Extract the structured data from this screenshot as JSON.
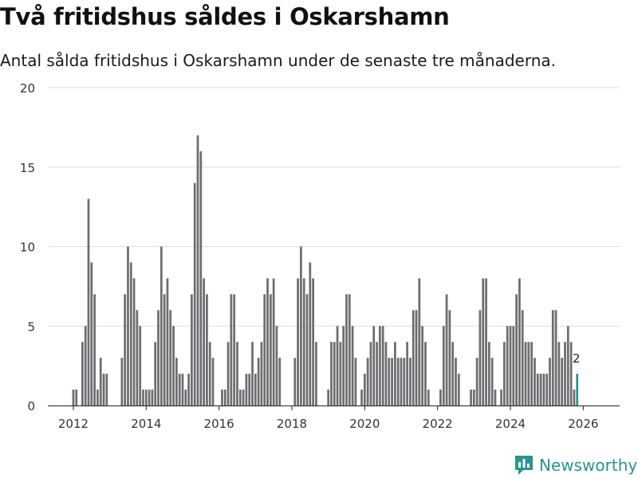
{
  "chart_data": {
    "type": "bar",
    "title": "Två fritidshus såldes i Oskarshamn",
    "subtitle": "Antal sålda fritidshus i Oskarshamn under de senaste tre månaderna.",
    "xlabel": "",
    "ylabel": "",
    "ylim": [
      0,
      20
    ],
    "yticks": [
      0,
      5,
      10,
      15,
      20
    ],
    "xlim": [
      2011.3,
      2027.0
    ],
    "xticks": [
      2012,
      2014,
      2016,
      2018,
      2020,
      2022,
      2024,
      2026
    ],
    "bar_color": "#6d6d72",
    "highlight_color": "#26968f",
    "grid_color": "#dddddd",
    "start_year": 2012,
    "start_month": 1,
    "values": [
      1,
      1,
      0,
      4,
      5,
      13,
      9,
      7,
      1,
      3,
      2,
      2,
      0,
      0,
      0,
      0,
      3,
      7,
      10,
      9,
      8,
      6,
      5,
      1,
      1,
      1,
      1,
      4,
      6,
      10,
      7,
      8,
      6,
      5,
      3,
      2,
      2,
      1,
      2,
      7,
      14,
      17,
      16,
      8,
      7,
      4,
      3,
      0,
      0,
      1,
      1,
      4,
      7,
      7,
      4,
      1,
      1,
      2,
      2,
      4,
      2,
      3,
      4,
      7,
      8,
      7,
      8,
      5,
      3,
      0,
      0,
      0,
      0,
      3,
      8,
      10,
      8,
      7,
      9,
      8,
      4,
      0,
      0,
      0,
      1,
      4,
      4,
      5,
      4,
      5,
      7,
      7,
      5,
      3,
      0,
      1,
      2,
      3,
      4,
      5,
      4,
      5,
      5,
      4,
      3,
      3,
      4,
      3,
      3,
      3,
      4,
      3,
      6,
      6,
      8,
      5,
      4,
      1,
      0,
      0,
      0,
      1,
      5,
      7,
      6,
      4,
      3,
      2,
      0,
      0,
      0,
      1,
      1,
      3,
      6,
      8,
      8,
      4,
      3,
      1,
      0,
      1,
      4,
      5,
      5,
      5,
      7,
      8,
      6,
      4,
      4,
      4,
      3,
      2,
      2,
      2,
      2,
      3,
      6,
      6,
      4,
      3,
      4,
      5,
      4,
      1,
      2
    ],
    "highlight_index": 166,
    "highlight_label": "2"
  },
  "brand": {
    "name": "Newsworthy",
    "icon": "newsworthy-logo-icon",
    "color": "#26968f"
  }
}
